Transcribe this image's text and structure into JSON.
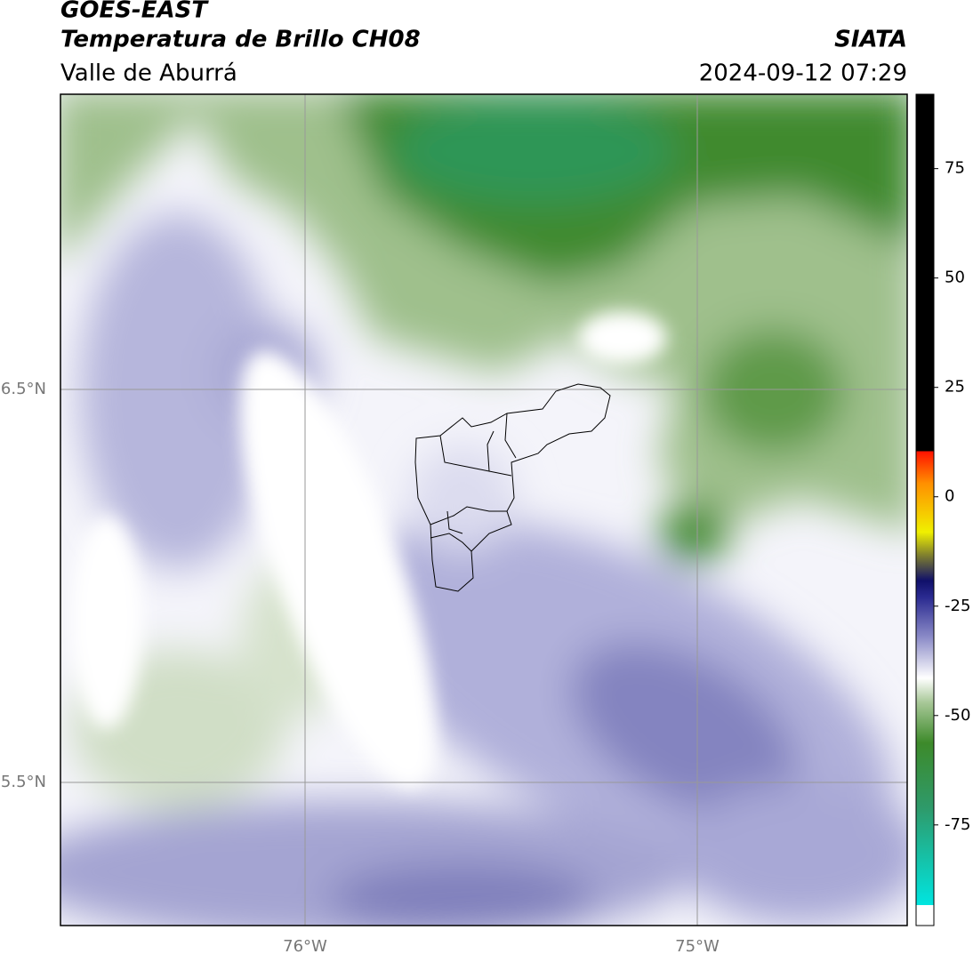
{
  "header": {
    "title": "GOES-EAST",
    "subtitle": "Temperatura de Brillo CH08",
    "region": "Valle de Aburrá",
    "agency": "SIATA",
    "datetime": "2024-09-12 07:29"
  },
  "map": {
    "lat_labels": [
      "6.5°N",
      "5.5°N"
    ],
    "lon_labels": [
      "76°W",
      "75°W"
    ]
  },
  "colorbar": {
    "lim": [
      -98,
      92
    ],
    "ticks": [
      75,
      50,
      25,
      0,
      -25,
      -50,
      -75
    ]
  }
}
